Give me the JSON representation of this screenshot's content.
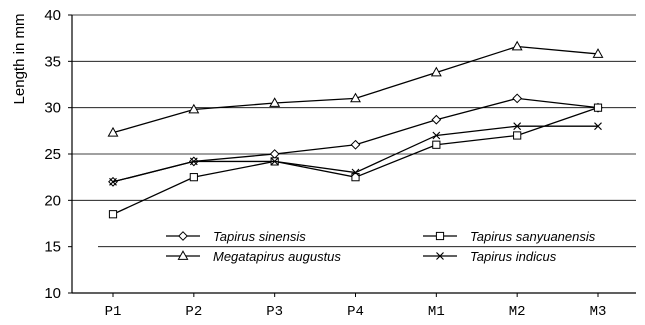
{
  "chart_data": {
    "type": "line",
    "ylabel": "Length in mm",
    "xlabel": "",
    "categories": [
      "P1",
      "P2",
      "P3",
      "P4",
      "M1",
      "M2",
      "M3"
    ],
    "ylim": [
      10,
      40
    ],
    "yticks": [
      10,
      15,
      20,
      25,
      30,
      35,
      40
    ],
    "grid": true,
    "legend": "bottom-center",
    "series": [
      {
        "name": "Tapirus sinensis",
        "marker": "diamond",
        "values": [
          22.0,
          24.2,
          25.0,
          26.0,
          28.7,
          31.0,
          30.0
        ]
      },
      {
        "name": "Megatapirus augustus",
        "marker": "triangle",
        "values": [
          27.3,
          29.8,
          30.5,
          31.0,
          33.8,
          36.6,
          35.8
        ]
      },
      {
        "name": "Tapirus sanyuanensis",
        "marker": "square",
        "values": [
          18.5,
          22.5,
          24.2,
          22.5,
          26.0,
          27.0,
          30.0
        ]
      },
      {
        "name": "Tapirus indicus",
        "marker": "cross",
        "values": [
          22.0,
          24.2,
          24.2,
          23.0,
          27.0,
          28.0,
          28.0
        ]
      }
    ]
  }
}
